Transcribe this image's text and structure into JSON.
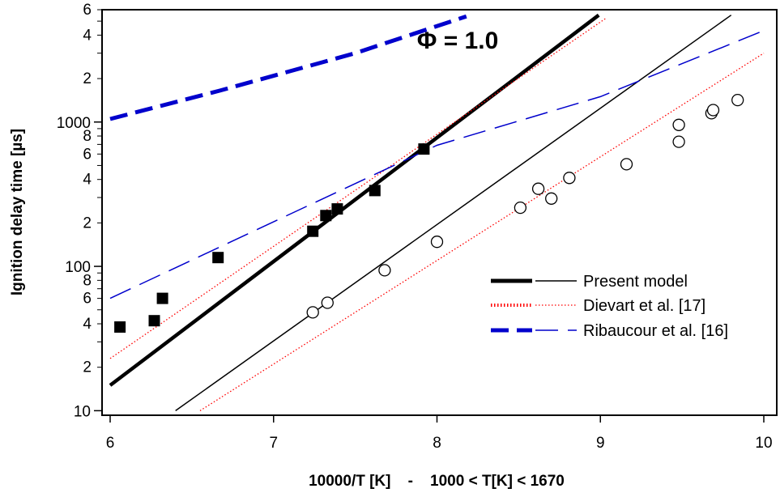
{
  "chart_data": {
    "type": "scatter",
    "annotation": "Φ = 1.0",
    "xlabel": "10000/T [K]    -    1000 < T[K] < 1670",
    "ylabel": "Ignition delay time [µs]",
    "xlim": [
      6,
      10
    ],
    "ylim": [
      9.3,
      6000
    ],
    "yscale": "log",
    "x_ticks": [
      6,
      7,
      8,
      9,
      10
    ],
    "y_ticks": [
      10,
      100,
      1000
    ],
    "y_minor_tick_labels": [
      "2",
      "4",
      "6",
      "8"
    ],
    "grid": false,
    "legend_position": "bottom-right",
    "legend": [
      {
        "label": "Present model",
        "style": "solid",
        "color": "#000000"
      },
      {
        "label": "Dievart et al. [17]",
        "style": "dotted",
        "color": "#ff0000"
      },
      {
        "label": "Ribaucour et al. [16]",
        "style": "dashed",
        "color": "#0000cc"
      }
    ],
    "series": [
      {
        "kind": "line",
        "style": "solid-thick",
        "color": "#000000",
        "x": [
          6.0,
          8.99
        ],
        "y": [
          15,
          5500
        ]
      },
      {
        "kind": "line",
        "style": "solid-thin",
        "color": "#000000",
        "x": [
          6.4,
          9.8
        ],
        "y": [
          10,
          5500
        ]
      },
      {
        "kind": "line",
        "style": "dotted",
        "color": "#ff0000",
        "x": [
          6.0,
          9.03
        ],
        "y": [
          23,
          5200
        ]
      },
      {
        "kind": "line",
        "style": "dotted",
        "color": "#ff0000",
        "x": [
          6.55,
          10.0
        ],
        "y": [
          10,
          3000
        ]
      },
      {
        "kind": "line",
        "style": "dashed-long",
        "color": "#0000cc",
        "x": [
          6.0,
          8.0,
          9.0,
          10.0
        ],
        "y": [
          60,
          690,
          1500,
          4300
        ]
      },
      {
        "kind": "line",
        "style": "dashed-thick",
        "color": "#0000cc",
        "x": [
          6.0,
          6.67,
          7.5,
          8.18
        ],
        "y": [
          1050,
          1650,
          3000,
          5400
        ]
      },
      {
        "kind": "points",
        "marker": "filled-square",
        "color": "#000000",
        "x": [
          6.06,
          6.27,
          6.32,
          6.66,
          7.24,
          7.32,
          7.39,
          7.62,
          7.92
        ],
        "y": [
          38,
          42,
          60,
          115,
          175,
          225,
          250,
          335,
          650
        ]
      },
      {
        "kind": "points",
        "marker": "open-circle",
        "color": "#000000",
        "x": [
          7.24,
          7.33,
          7.68,
          8.0,
          8.51,
          8.62,
          8.7,
          8.81,
          9.16,
          9.48,
          9.48,
          9.68,
          9.69,
          9.84
        ],
        "y": [
          48,
          56,
          94,
          148,
          255,
          345,
          295,
          410,
          510,
          730,
          955,
          1150,
          1210,
          1420
        ]
      }
    ]
  }
}
